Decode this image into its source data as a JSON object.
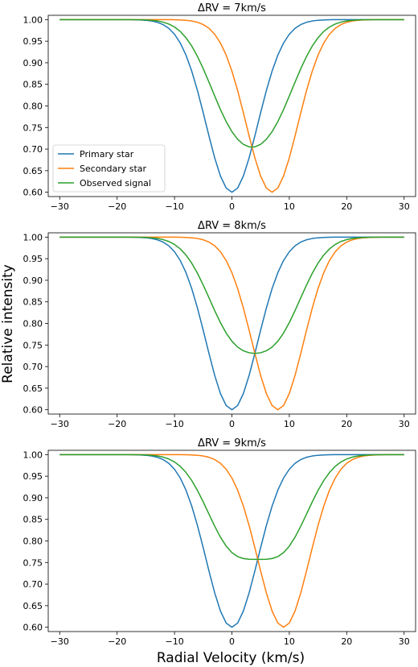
{
  "figure": {
    "xlabel": "Radial Velocity (km/s)",
    "ylabel": "Relative intensity"
  },
  "legend": {
    "entries": [
      {
        "label": "Primary star",
        "color": "#1f77b4"
      },
      {
        "label": "Secondary star",
        "color": "#ff7f0e"
      },
      {
        "label": "Observed signal",
        "color": "#2ca02c"
      }
    ],
    "placement": "lower-left of first panel"
  },
  "chart_data": [
    {
      "type": "line",
      "title": "ΔRV = 7km/s",
      "xlim": [
        -32,
        32
      ],
      "ylim": [
        0.59,
        1.01
      ],
      "xticks": [
        -30,
        -20,
        -10,
        0,
        10,
        20,
        30
      ],
      "yticks": [
        0.6,
        0.65,
        0.7,
        0.75,
        0.8,
        0.85,
        0.9,
        0.95,
        1.0
      ],
      "grid": false,
      "series": [
        {
          "name": "Primary star",
          "color": "#1f77b4",
          "center": 0,
          "depth": 0.4,
          "sigma": 4.5
        },
        {
          "name": "Secondary star",
          "color": "#ff7f0e",
          "center": 7,
          "depth": 0.4,
          "sigma": 4.5
        },
        {
          "name": "Observed signal",
          "color": "#2ca02c",
          "components": [
            0,
            7
          ],
          "depth": 0.4,
          "sigma": 4.5
        }
      ]
    },
    {
      "type": "line",
      "title": "ΔRV = 8km/s",
      "xlim": [
        -32,
        32
      ],
      "ylim": [
        0.59,
        1.01
      ],
      "xticks": [
        -30,
        -20,
        -10,
        0,
        10,
        20,
        30
      ],
      "yticks": [
        0.6,
        0.65,
        0.7,
        0.75,
        0.8,
        0.85,
        0.9,
        0.95,
        1.0
      ],
      "grid": false,
      "series": [
        {
          "name": "Primary star",
          "color": "#1f77b4",
          "center": 0,
          "depth": 0.4,
          "sigma": 4.5
        },
        {
          "name": "Secondary star",
          "color": "#ff7f0e",
          "center": 8,
          "depth": 0.4,
          "sigma": 4.5
        },
        {
          "name": "Observed signal",
          "color": "#2ca02c",
          "components": [
            0,
            8
          ],
          "depth": 0.4,
          "sigma": 4.5
        }
      ]
    },
    {
      "type": "line",
      "title": "ΔRV = 9km/s",
      "xlim": [
        -32,
        32
      ],
      "ylim": [
        0.59,
        1.01
      ],
      "xticks": [
        -30,
        -20,
        -10,
        0,
        10,
        20,
        30
      ],
      "yticks": [
        0.6,
        0.65,
        0.7,
        0.75,
        0.8,
        0.85,
        0.9,
        0.95,
        1.0
      ],
      "grid": false,
      "series": [
        {
          "name": "Primary star",
          "color": "#1f77b4",
          "center": 0,
          "depth": 0.4,
          "sigma": 4.5
        },
        {
          "name": "Secondary star",
          "color": "#ff7f0e",
          "center": 9,
          "depth": 0.4,
          "sigma": 4.5
        },
        {
          "name": "Observed signal",
          "color": "#2ca02c",
          "components": [
            0,
            9
          ],
          "depth": 0.4,
          "sigma": 4.5
        }
      ]
    }
  ]
}
